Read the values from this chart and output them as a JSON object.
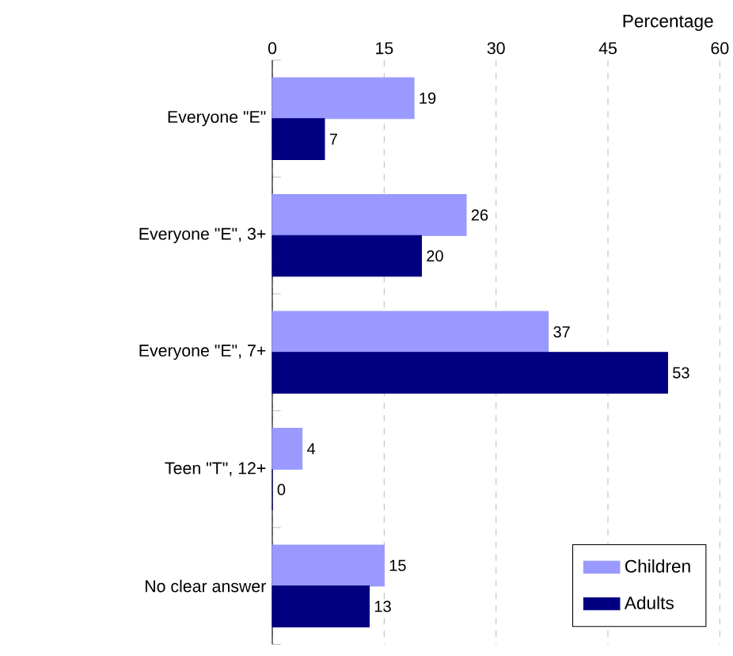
{
  "chart_data": {
    "type": "bar",
    "orientation": "horizontal",
    "xlabel": "Percentage",
    "categories": [
      "Everyone \"E\"",
      "Everyone \"E\", 3+",
      "Everyone \"E\", 7+",
      "Teen \"T\", 12+",
      "No clear answer"
    ],
    "series": [
      {
        "name": "Children",
        "color": "#9999ff",
        "values": [
          19,
          26,
          37,
          4,
          15
        ]
      },
      {
        "name": "Adults",
        "color": "#000080",
        "values": [
          7,
          20,
          53,
          0,
          13
        ]
      }
    ],
    "xlim": [
      0,
      60
    ],
    "xticks": [
      0,
      15,
      30,
      45,
      60
    ],
    "grid": "x",
    "legend": "bottom right",
    "data_labels": true
  }
}
